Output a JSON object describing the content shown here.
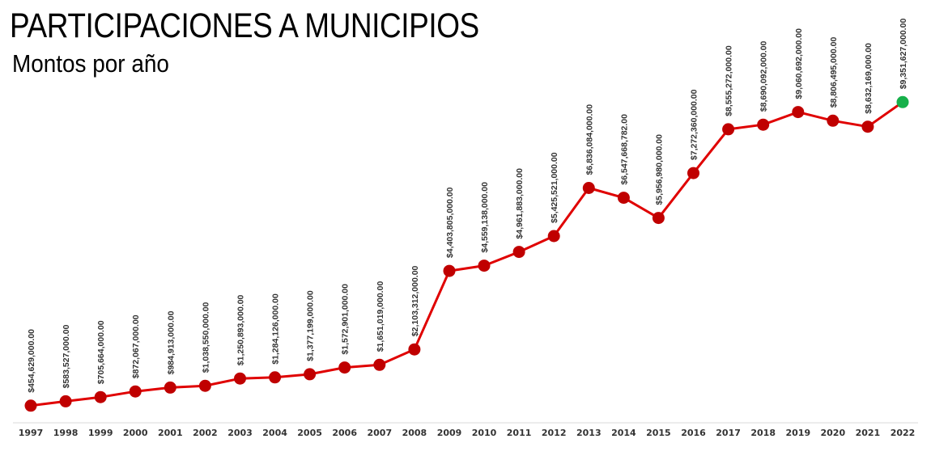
{
  "header": {
    "title": "PARTICIPACIONES A MUNICIPIOS",
    "subtitle": "Montos por año"
  },
  "chart_data": {
    "type": "line",
    "title": "PARTICIPACIONES A MUNICIPIOS",
    "subtitle": "Montos por año",
    "xlabel": "",
    "ylabel": "",
    "grid": false,
    "legend": "none",
    "categories": [
      "1997",
      "1998",
      "1999",
      "2000",
      "2001",
      "2002",
      "2003",
      "2004",
      "2005",
      "2006",
      "2007",
      "2008",
      "2009",
      "2010",
      "2011",
      "2012",
      "2013",
      "2014",
      "2015",
      "2016",
      "2017",
      "2018",
      "2019",
      "2020",
      "2021",
      "2022"
    ],
    "series": [
      {
        "values": [
          454629000,
          583527000,
          705664000,
          872067000,
          984913000,
          1038550000,
          1250893000,
          1284126000,
          1377199000,
          1572901000,
          1651019000,
          2103312000,
          4403805000,
          4559138000,
          4961883000,
          5425521000,
          6836084000,
          6547668782,
          5956980000,
          7272360000,
          8555272000,
          8690092000,
          9060692000,
          8806495000,
          8632169000,
          9351627000
        ],
        "data_labels": [
          "$454,629,000.00",
          "$583,527,000.00",
          "$705,664,000.00",
          "$872,067,000.00",
          "$984,913,000.00",
          "$1,038,550,000.00",
          "$1,250,893,000.00",
          "$1,284,126,000.00",
          "$1,377,199,000.00",
          "$1,572,901,000.00",
          "$1,651,019,000.00",
          "$2,103,312,000.00",
          "$4,403,805,000.00",
          "$4,559,138,000.00",
          "$4,961,883,000.00",
          "$5,425,521,000.00",
          "$6,836,084,000.00",
          "$6,547,668,782.00",
          "$5,956,980,000.00",
          "$7,272,360,000.00",
          "$8,555,272,000.00",
          "$8,690,092,000.00",
          "$9,060,692,000.00",
          "$8,806,495,000.00",
          "$8,632,169,000.00",
          "$9,351,627,000.00"
        ]
      }
    ],
    "colors": {
      "line": "#e00000",
      "marker": "#c00000",
      "marker_highlight": "#16b04a",
      "axis": "#d9d9d9",
      "label": "#333333"
    }
  }
}
